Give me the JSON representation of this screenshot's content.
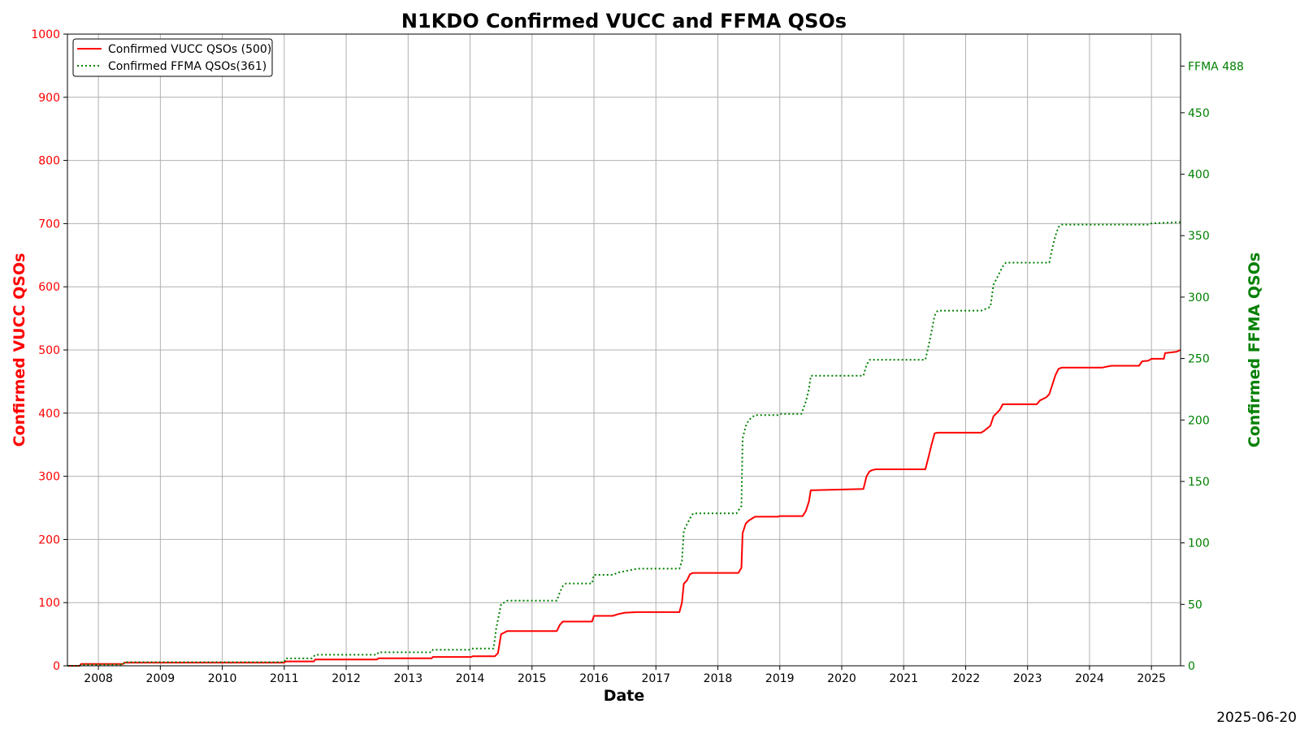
{
  "chart_data": {
    "type": "line",
    "title": "N1KDO Confirmed VUCC and FFMA QSOs",
    "xlabel": "Date",
    "ylabel_left": "Confirmed VUCC QSOs",
    "ylabel_right": "Confirmed FFMA QSOs",
    "xlim": [
      2007.5,
      2025.47
    ],
    "ylim_left": [
      0,
      1000
    ],
    "ylim_right": [
      0,
      514
    ],
    "x_ticks": [
      2008,
      2009,
      2010,
      2011,
      2012,
      2013,
      2014,
      2015,
      2016,
      2017,
      2018,
      2019,
      2020,
      2021,
      2022,
      2023,
      2024,
      2025
    ],
    "x_tick_labels": [
      "2008",
      "2009",
      "2010",
      "2011",
      "2012",
      "2013",
      "2014",
      "2015",
      "2016",
      "2017",
      "2018",
      "2019",
      "2020",
      "2021",
      "2022",
      "2023",
      "2024",
      "2025"
    ],
    "y_ticks_left": [
      0,
      100,
      200,
      300,
      400,
      500,
      600,
      700,
      800,
      900,
      1000
    ],
    "y_ticks_right": [
      0,
      50,
      100,
      150,
      200,
      250,
      300,
      350,
      400,
      450
    ],
    "right_axis_annotation": "FFMA 488",
    "grid": true,
    "legend_position": "top-left",
    "footer_date": "2025-06-20",
    "colors": {
      "vucc": "#ff0000",
      "ffma": "#008000"
    },
    "series": [
      {
        "name": "Confirmed VUCC QSOs (500)",
        "axis": "left",
        "style": "solid",
        "x": [
          2007.5,
          2007.7,
          2007.72,
          2008.4,
          2008.42,
          2011.0,
          2011.02,
          2011.48,
          2011.5,
          2012.5,
          2012.52,
          2013.38,
          2013.4,
          2014.02,
          2014.04,
          2014.4,
          2014.45,
          2014.5,
          2014.6,
          2015.4,
          2015.45,
          2015.5,
          2015.55,
          2015.97,
          2016.0,
          2016.3,
          2016.4,
          2016.5,
          2016.7,
          2017.38,
          2017.42,
          2017.45,
          2017.5,
          2017.55,
          2017.6,
          2017.7,
          2018.33,
          2018.38,
          2018.4,
          2018.45,
          2018.5,
          2018.6,
          2018.7,
          2018.97,
          2019.0,
          2019.37,
          2019.42,
          2019.47,
          2019.5,
          2019.55,
          2020.35,
          2020.4,
          2020.45,
          2020.5,
          2020.55,
          2021.35,
          2021.4,
          2021.45,
          2021.5,
          2021.55,
          2022.25,
          2022.3,
          2022.4,
          2022.45,
          2022.55,
          2022.6,
          2023.15,
          2023.2,
          2023.3,
          2023.35,
          2023.4,
          2023.45,
          2023.5,
          2023.55,
          2024.2,
          2024.35,
          2024.8,
          2024.85,
          2024.95,
          2025.0,
          2025.2,
          2025.22,
          2025.4,
          2025.47
        ],
        "y": [
          0,
          0,
          3,
          3,
          5,
          5,
          7,
          7,
          10,
          10,
          12,
          12,
          14,
          14,
          15,
          15,
          20,
          50,
          55,
          55,
          65,
          70,
          70,
          70,
          79,
          79,
          82,
          84,
          85,
          85,
          100,
          130,
          135,
          145,
          147,
          147,
          147,
          155,
          210,
          225,
          230,
          236,
          236,
          236,
          237,
          237,
          245,
          260,
          278,
          278,
          280,
          300,
          308,
          310,
          311,
          311,
          330,
          350,
          368,
          369,
          369,
          372,
          380,
          395,
          405,
          414,
          414,
          420,
          425,
          430,
          445,
          460,
          470,
          472,
          472,
          475,
          475,
          482,
          483,
          486,
          486,
          495,
          497,
          500
        ]
      },
      {
        "name": "Confirmed FFMA QSOs(361)",
        "axis": "right",
        "style": "dotted",
        "x": [
          2007.5,
          2007.7,
          2007.72,
          2008.4,
          2008.42,
          2011.0,
          2011.02,
          2011.45,
          2011.5,
          2012.5,
          2012.52,
          2013.38,
          2013.4,
          2014.0,
          2014.02,
          2014.38,
          2014.42,
          2014.5,
          2014.6,
          2015.4,
          2015.45,
          2015.5,
          2015.55,
          2015.97,
          2016.0,
          2016.3,
          2016.4,
          2016.6,
          2016.7,
          2017.38,
          2017.42,
          2017.45,
          2017.5,
          2017.55,
          2017.6,
          2018.3,
          2018.38,
          2018.4,
          2018.45,
          2018.5,
          2018.6,
          2018.97,
          2019.0,
          2019.35,
          2019.42,
          2019.47,
          2019.5,
          2019.55,
          2020.35,
          2020.4,
          2020.45,
          2021.35,
          2021.4,
          2021.45,
          2021.5,
          2021.55,
          2022.25,
          2022.4,
          2022.45,
          2022.55,
          2022.6,
          2022.65,
          2023.35,
          2023.4,
          2023.45,
          2023.5,
          2023.55,
          2024.95,
          2025.0,
          2025.47
        ],
        "y": [
          0,
          0,
          1,
          1,
          3,
          3,
          6,
          6,
          9,
          9,
          11,
          11,
          13,
          13,
          14,
          14,
          30,
          50,
          53,
          53,
          60,
          65,
          67,
          67,
          74,
          74,
          76,
          78,
          79,
          79,
          85,
          110,
          115,
          120,
          124,
          124,
          130,
          185,
          195,
          200,
          204,
          204,
          205,
          205,
          215,
          225,
          236,
          236,
          236,
          245,
          249,
          249,
          260,
          272,
          285,
          289,
          289,
          292,
          310,
          320,
          325,
          328,
          328,
          340,
          350,
          357,
          359,
          359,
          360,
          361
        ]
      }
    ]
  }
}
